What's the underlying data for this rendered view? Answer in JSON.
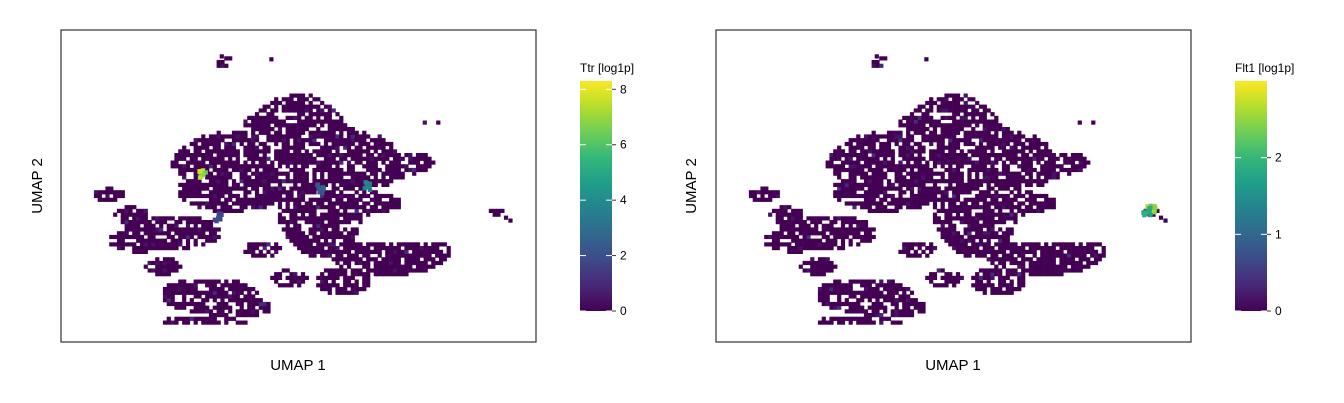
{
  "chart_data": [
    {
      "type": "scatter",
      "title": "",
      "xlabel": "UMAP 1",
      "ylabel": "UMAP 2",
      "legend": {
        "title": "Ttr [log1p]",
        "placement": "right",
        "range": [
          0,
          8.3
        ],
        "ticks": [
          0,
          2,
          4,
          6,
          8
        ],
        "tick_labels": [
          "0",
          "2",
          "4",
          "6",
          "8"
        ]
      },
      "colormap": [
        "#440154",
        "#482878",
        "#3e4a89",
        "#31688e",
        "#26828e",
        "#1f9e89",
        "#35b779",
        "#6ece58",
        "#b5de2b",
        "#fde725"
      ],
      "highlights": [
        {
          "x": 0.29,
          "y": 0.54,
          "value": 7.8
        },
        {
          "x": 0.65,
          "y": 0.5,
          "value": 4.2
        },
        {
          "x": 0.55,
          "y": 0.49,
          "value": 2.5
        },
        {
          "x": 0.32,
          "y": 0.39,
          "value": 2.0
        }
      ]
    },
    {
      "type": "scatter",
      "title": "",
      "xlabel": "UMAP 1",
      "ylabel": "UMAP 2",
      "legend": {
        "title": "Flt1 [log1p]",
        "placement": "right",
        "range": [
          0,
          3.0
        ],
        "ticks": [
          0,
          1,
          2
        ],
        "tick_labels": [
          "0",
          "1",
          "2"
        ]
      },
      "colormap": [
        "#440154",
        "#482878",
        "#3e4a89",
        "#31688e",
        "#26828e",
        "#1f9e89",
        "#35b779",
        "#6ece58",
        "#b5de2b",
        "#fde725"
      ],
      "highlights": [
        {
          "x": 0.94,
          "y": 0.42,
          "value": 2.8
        },
        {
          "x": 0.93,
          "y": 0.41,
          "value": 2.0
        }
      ]
    }
  ]
}
